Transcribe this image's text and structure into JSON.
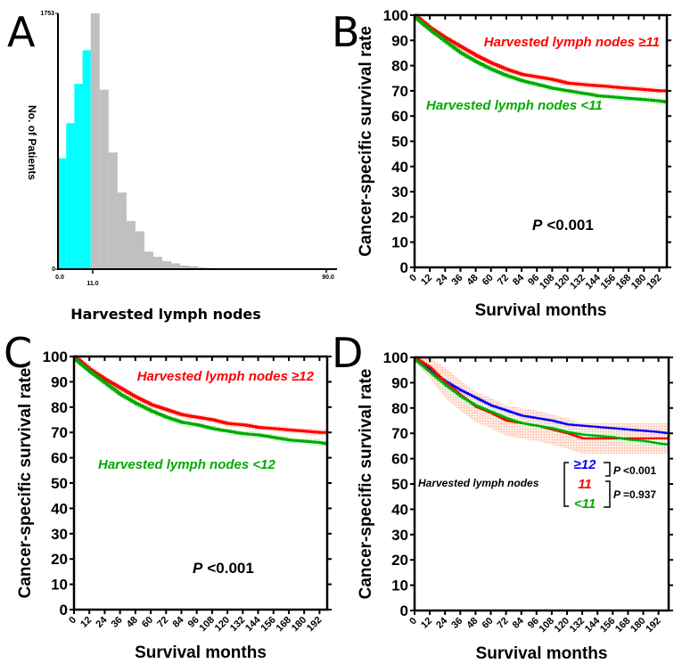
{
  "figure": {
    "panels": [
      "A",
      "B",
      "C",
      "D"
    ]
  },
  "chart_data": [
    {
      "panel": "A",
      "type": "bar",
      "title": "",
      "xlabel": "Harvested lymph nodes",
      "ylabel": "No. of Patients",
      "ylim": [
        0,
        1753
      ],
      "y_tick_labels": [
        "0",
        "1753"
      ],
      "x_tick_labels": [
        "0.0",
        "11.0",
        "90.0"
      ],
      "xlim": [
        0,
        90
      ],
      "cutoff": 11,
      "colors": {
        "below_cutoff": "#00ffff",
        "above_cutoff": "#c0c0c0"
      },
      "bins": [
        {
          "start": 0,
          "end": 2.75,
          "value": 760,
          "group": "below"
        },
        {
          "start": 2.75,
          "end": 5.5,
          "value": 1000,
          "group": "below"
        },
        {
          "start": 5.5,
          "end": 8.25,
          "value": 1270,
          "group": "below"
        },
        {
          "start": 8.25,
          "end": 11,
          "value": 1500,
          "group": "below"
        },
        {
          "start": 11,
          "end": 14,
          "value": 1753,
          "group": "above"
        },
        {
          "start": 14,
          "end": 17,
          "value": 1230,
          "group": "above"
        },
        {
          "start": 17,
          "end": 20,
          "value": 800,
          "group": "above"
        },
        {
          "start": 20,
          "end": 23,
          "value": 525,
          "group": "above"
        },
        {
          "start": 23,
          "end": 26,
          "value": 330,
          "group": "above"
        },
        {
          "start": 26,
          "end": 29,
          "value": 260,
          "group": "above"
        },
        {
          "start": 29,
          "end": 32,
          "value": 120,
          "group": "above"
        },
        {
          "start": 32,
          "end": 35,
          "value": 85,
          "group": "above"
        },
        {
          "start": 35,
          "end": 38,
          "value": 55,
          "group": "above"
        },
        {
          "start": 38,
          "end": 41,
          "value": 40,
          "group": "above"
        },
        {
          "start": 41,
          "end": 44,
          "value": 25,
          "group": "above"
        },
        {
          "start": 44,
          "end": 47,
          "value": 20,
          "group": "above"
        },
        {
          "start": 47,
          "end": 50,
          "value": 12,
          "group": "above"
        },
        {
          "start": 50,
          "end": 53,
          "value": 8,
          "group": "above"
        },
        {
          "start": 53,
          "end": 56,
          "value": 5,
          "group": "above"
        },
        {
          "start": 56,
          "end": 60,
          "value": 4,
          "group": "above"
        },
        {
          "start": 60,
          "end": 64,
          "value": 3,
          "group": "above"
        },
        {
          "start": 64,
          "end": 70,
          "value": 2,
          "group": "above"
        },
        {
          "start": 70,
          "end": 86,
          "value": 1,
          "group": "above"
        },
        {
          "start": 86,
          "end": 89,
          "value": 6,
          "group": "above"
        }
      ]
    },
    {
      "panel": "B",
      "type": "line",
      "xlabel": "Survival months",
      "ylabel": "Cancer-specific survival rate",
      "ylim": [
        0,
        100
      ],
      "xlim": [
        0,
        198
      ],
      "y_ticks": [
        0,
        10,
        20,
        30,
        40,
        50,
        60,
        70,
        80,
        90,
        100
      ],
      "x_ticks": [
        0,
        12,
        24,
        36,
        48,
        60,
        72,
        84,
        96,
        108,
        120,
        132,
        144,
        156,
        168,
        180,
        192
      ],
      "annotation": {
        "p_label": "P",
        "p_value": "<0.001"
      },
      "series": [
        {
          "name": "Harvested lymph nodes ≥11",
          "color": "#ff0000",
          "x": [
            0,
            12,
            24,
            36,
            48,
            60,
            72,
            84,
            96,
            108,
            120,
            132,
            144,
            156,
            168,
            180,
            192,
            198
          ],
          "y": [
            100,
            95,
            91,
            87.5,
            84,
            81,
            78.5,
            76.5,
            75.5,
            74.5,
            73,
            72.5,
            72,
            71.5,
            71,
            70.5,
            70,
            70
          ],
          "ci": 1.2
        },
        {
          "name": "Harvested lymph nodes <11",
          "color": "#00aa00",
          "x": [
            0,
            12,
            24,
            36,
            48,
            60,
            72,
            84,
            96,
            108,
            120,
            132,
            144,
            156,
            168,
            180,
            192,
            198
          ],
          "y": [
            99,
            94,
            89.5,
            85,
            81.5,
            78.5,
            76,
            74,
            72.5,
            71,
            70,
            69,
            68,
            67.5,
            67,
            66.5,
            66,
            65.5
          ],
          "ci": 1.2
        }
      ]
    },
    {
      "panel": "C",
      "type": "line",
      "xlabel": "Survival months",
      "ylabel": "Cancer-specific survival rate",
      "ylim": [
        0,
        100
      ],
      "xlim": [
        0,
        198
      ],
      "y_ticks": [
        0,
        10,
        20,
        30,
        40,
        50,
        60,
        70,
        80,
        90,
        100
      ],
      "x_ticks": [
        0,
        12,
        24,
        36,
        48,
        60,
        72,
        84,
        96,
        108,
        120,
        132,
        144,
        156,
        168,
        180,
        192
      ],
      "annotation": {
        "p_label": "P",
        "p_value": "<0.001"
      },
      "series": [
        {
          "name": "Harvested lymph nodes ≥12",
          "color": "#ff0000",
          "x": [
            0,
            12,
            24,
            36,
            48,
            60,
            72,
            84,
            96,
            108,
            120,
            132,
            144,
            156,
            168,
            180,
            192,
            198
          ],
          "y": [
            100,
            95,
            91,
            87.5,
            84,
            81,
            79,
            77,
            76,
            75,
            73.5,
            73,
            72,
            71.5,
            71,
            70.5,
            70,
            70
          ],
          "ci": 1.2
        },
        {
          "name": "Harvested lymph nodes <12",
          "color": "#00aa00",
          "x": [
            0,
            12,
            24,
            36,
            48,
            60,
            72,
            84,
            96,
            108,
            120,
            132,
            144,
            156,
            168,
            180,
            192,
            198
          ],
          "y": [
            99,
            94,
            89.5,
            85,
            81.5,
            78.5,
            76,
            74,
            73,
            71.5,
            70.5,
            69.5,
            69,
            68,
            67,
            66.5,
            66,
            65.5
          ],
          "ci": 1.2
        }
      ]
    },
    {
      "panel": "D",
      "type": "line",
      "xlabel": "Survival months",
      "ylabel": "Cancer-specific survival rate",
      "ylim": [
        0,
        100
      ],
      "xlim": [
        0,
        200
      ],
      "y_ticks": [
        0,
        10,
        20,
        30,
        40,
        50,
        60,
        70,
        80,
        90,
        100
      ],
      "x_ticks": [
        0,
        12,
        24,
        36,
        48,
        60,
        72,
        84,
        96,
        108,
        120,
        132,
        144,
        156,
        168,
        180,
        192
      ],
      "legend": {
        "title": "Harvested lymph nodes",
        "groups": [
          "≥12",
          "11",
          "<11"
        ],
        "comparisons": [
          {
            "between": [
              "≥12",
              "11"
            ],
            "p_label": "P",
            "p_value": "<0.001"
          },
          {
            "between": [
              "11",
              "<11"
            ],
            "p_label": "P",
            "p_value": "=0.937"
          }
        ]
      },
      "series": [
        {
          "name": "≥12",
          "color": "#0000ff",
          "x": [
            0,
            12,
            24,
            36,
            48,
            60,
            72,
            84,
            96,
            108,
            120,
            132,
            144,
            156,
            168,
            180,
            192,
            200
          ],
          "y": [
            100,
            95,
            90.5,
            87,
            84,
            81,
            79,
            77,
            76,
            75,
            73.5,
            73,
            72.5,
            72,
            71.5,
            71,
            70.5,
            70
          ],
          "ci": 1.0
        },
        {
          "name": "11",
          "color": "#ff0000",
          "x": [
            0,
            12,
            24,
            36,
            48,
            60,
            72,
            84,
            96,
            108,
            120,
            132,
            144,
            156,
            168,
            180,
            192,
            200
          ],
          "y": [
            100,
            96,
            90,
            85,
            80.5,
            78,
            75,
            74,
            73,
            71.5,
            70,
            68,
            68,
            68,
            68,
            68,
            68,
            68
          ],
          "ci": 6
        },
        {
          "name": "<11",
          "color": "#00aa00",
          "x": [
            0,
            12,
            24,
            36,
            48,
            60,
            72,
            84,
            96,
            108,
            120,
            132,
            144,
            156,
            168,
            180,
            192,
            200
          ],
          "y": [
            99,
            94,
            89,
            84.5,
            81,
            78.5,
            76,
            74,
            73,
            72,
            70.5,
            69.5,
            69,
            68.5,
            67.5,
            67,
            66,
            65.5
          ],
          "ci": 1.5
        }
      ]
    }
  ]
}
